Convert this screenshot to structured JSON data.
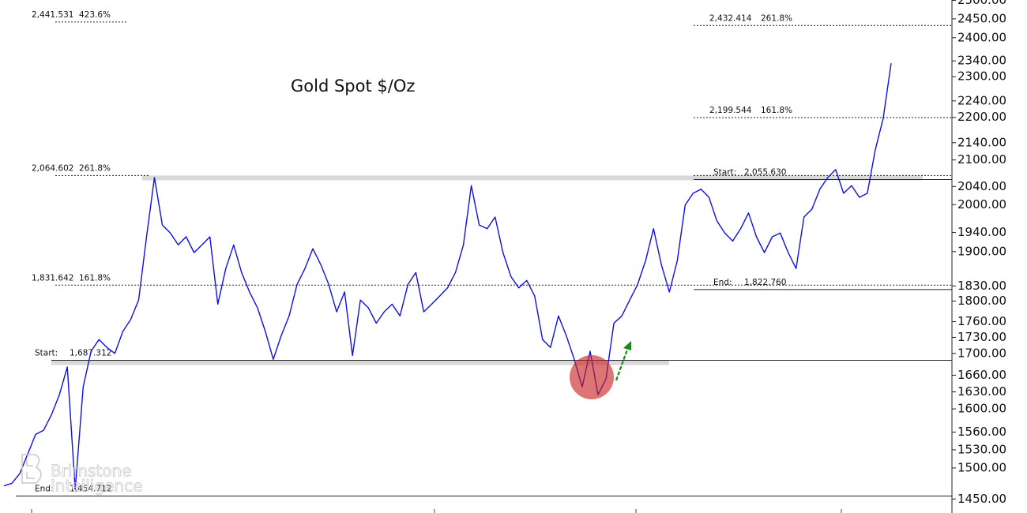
{
  "chart_data": {
    "type": "line",
    "title": "Gold Spot $/Oz",
    "watermark": [
      "Brimstone",
      "Intelligence"
    ],
    "log_scale": true,
    "ylim": [
      1428,
      2501
    ],
    "yticks": [
      {
        "value": 2500,
        "label": "2500.00"
      },
      {
        "value": 2450,
        "label": "2450.00"
      },
      {
        "value": 2400,
        "label": "2400.00"
      },
      {
        "value": 2340,
        "label": "2340.00"
      },
      {
        "value": 2300,
        "label": "2300.00"
      },
      {
        "value": 2240,
        "label": "2240.00"
      },
      {
        "value": 2200,
        "label": "2200.00"
      },
      {
        "value": 2140,
        "label": "2140.00"
      },
      {
        "value": 2100,
        "label": "2100.00"
      },
      {
        "value": 2040,
        "label": "2040.00"
      },
      {
        "value": 2000,
        "label": "2000.00"
      },
      {
        "value": 1940,
        "label": "1940.00"
      },
      {
        "value": 1900,
        "label": "1900.00"
      },
      {
        "value": 1830,
        "label": "1830.00"
      },
      {
        "value": 1800,
        "label": "1800.00"
      },
      {
        "value": 1760,
        "label": "1760.00"
      },
      {
        "value": 1730,
        "label": "1730.00"
      },
      {
        "value": 1700,
        "label": "1700.00"
      },
      {
        "value": 1660,
        "label": "1660.00"
      },
      {
        "value": 1630,
        "label": "1630.00"
      },
      {
        "value": 1600,
        "label": "1600.00"
      },
      {
        "value": 1560,
        "label": "1560.00"
      },
      {
        "value": 1530,
        "label": "1530.00"
      },
      {
        "value": 1500,
        "label": "1500.00"
      },
      {
        "value": 1450,
        "label": "1450.00"
      }
    ],
    "series": [
      {
        "name": "Gold Spot",
        "color": "#1010e0",
        "values": [
          1471,
          1475,
          1491,
          1523,
          1556,
          1563,
          1590,
          1625,
          1675,
          1465,
          1639,
          1704,
          1726,
          1711,
          1700,
          1741,
          1764,
          1802,
          1931,
          2060,
          1956,
          1939,
          1914,
          1931,
          1898,
          1914,
          1931,
          1794,
          1865,
          1914,
          1857,
          1818,
          1787,
          1741,
          1689,
          1733,
          1771,
          1833,
          1865,
          1906,
          1873,
          1833,
          1779,
          1818,
          1696,
          1802,
          1787,
          1757,
          1779,
          1794,
          1771,
          1833,
          1857,
          1779,
          1794,
          1810,
          1826,
          1857,
          1914,
          2042,
          1956,
          1948,
          1973,
          1898,
          1849,
          1826,
          1841,
          1810,
          1726,
          1711,
          1771,
          1733,
          1689,
          1639,
          1704,
          1625,
          1653,
          1757,
          1771,
          1802,
          1833,
          1881,
          1948,
          1873,
          1818,
          1881,
          1999,
          2025,
          2034,
          2016,
          1965,
          1939,
          1922,
          1948,
          1982,
          1931,
          1898,
          1931,
          1939,
          1898,
          1865,
          1973,
          1990,
          2034,
          2060,
          2078,
          2025,
          2042,
          2016,
          2025,
          2123,
          2198,
          2334
        ]
      }
    ],
    "fib_left": [
      {
        "value": 2441.531,
        "label": "2,441.531",
        "ratio": "423.6%",
        "style": "dashed"
      },
      {
        "value": 2064.602,
        "label": "2,064.602",
        "ratio": "261.8%",
        "style": "dashed"
      },
      {
        "value": 1831.642,
        "label": "1,831.642",
        "ratio": "161.8%",
        "style": "dashed"
      },
      {
        "prefix": "Start:",
        "value": 1687.312,
        "label": "1,687.312",
        "style": "solid"
      },
      {
        "prefix": "End:",
        "value": 1454.712,
        "label": "1,454.712",
        "style": "solid"
      }
    ],
    "fib_right": [
      {
        "value": 2432.414,
        "label": "2,432.414",
        "ratio": "261.8%",
        "style": "dashed"
      },
      {
        "value": 2199.544,
        "label": "2,199.544",
        "ratio": "161.8%",
        "style": "dashed"
      },
      {
        "prefix": "Start:",
        "value": 2055.63,
        "label": "2,055.630",
        "style": "solid"
      },
      {
        "prefix": "End:",
        "value": 1822.76,
        "label": "1,822.760",
        "style": "solid"
      }
    ]
  }
}
